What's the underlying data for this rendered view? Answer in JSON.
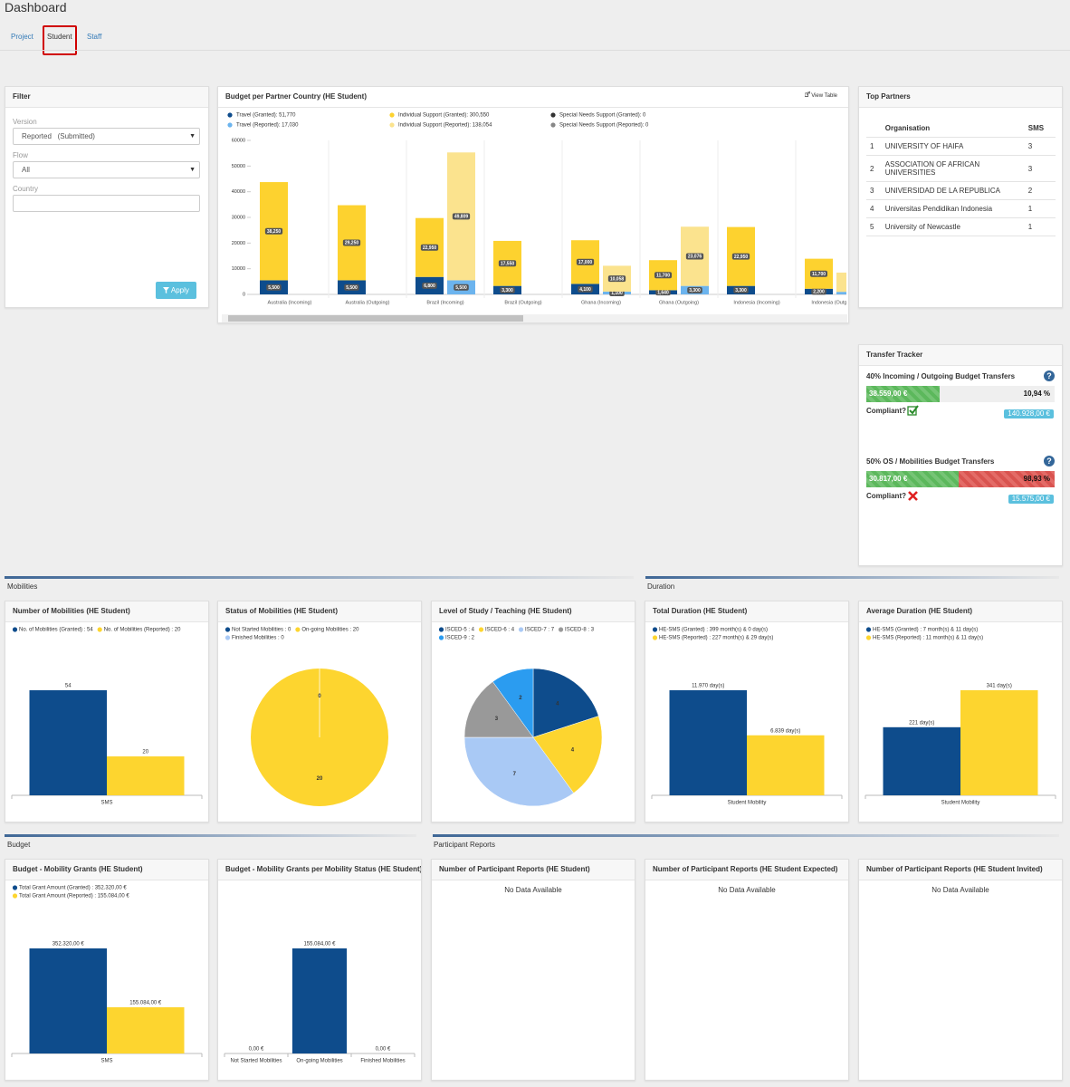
{
  "header": {
    "title": "Dashboard",
    "tabs": [
      "Project",
      "Student",
      "Staff"
    ]
  },
  "filter": {
    "title": "Filter",
    "version_label": "Version",
    "version_value": "Reported   (Submitted)",
    "flow_label": "Flow",
    "flow_value": "All",
    "country_label": "Country",
    "button": "Apply"
  },
  "budget_country": {
    "title": "Budget per Partner Country (HE Student)",
    "view_table": "View Table",
    "chart": {
      "type": "stacked-bar",
      "categories": [
        "Australia (Incoming)",
        "Australia (Outgoing)",
        "Brazil (Incoming)",
        "Brazil (Outgoing)",
        "Ghana (Incoming)",
        "Ghana (Outgoing)",
        "Indonesia (Incoming)",
        "Indonesia (Outgoing)"
      ],
      "series": [
        {
          "name": "Travel (Granted): 51,770",
          "color": "#0e4c8c",
          "stack": "granted",
          "values": [
            5500,
            5500,
            6800,
            3300,
            4100,
            1640,
            3300,
            2200
          ],
          "value_labels": [
            "5,500",
            "5,500",
            "6,800",
            "3,300",
            "4,100",
            "1,640",
            "3,300",
            "2,200"
          ]
        },
        {
          "name": "Travel (Reported): 17,030",
          "color": "#6cb4ee",
          "stack": "reported",
          "values": [
            null,
            null,
            5500,
            null,
            1100,
            3300,
            null,
            1000
          ],
          "value_labels": [
            null,
            null,
            "5,500",
            null,
            "1,100",
            "3,300",
            null,
            null
          ]
        },
        {
          "name": "Individual Support (Granted): 300,550",
          "color": "#fdd22f",
          "stack": "granted",
          "values": [
            38250,
            29250,
            22950,
            17550,
            17000,
            11700,
            22950,
            11700
          ],
          "value_labels": [
            "38,250",
            "29,250",
            "22,950",
            "17,550",
            "17,000",
            "11,700",
            "22,950",
            "11,700"
          ]
        },
        {
          "name": "Individual Support (Reported): 138,054",
          "color": "#fbe38e",
          "stack": "reported",
          "values": [
            null,
            null,
            49809,
            null,
            10058,
            23076,
            null,
            7500
          ],
          "value_labels": [
            null,
            null,
            "49,809",
            null,
            "10,058",
            "23,076",
            null,
            null
          ]
        },
        {
          "name": "Special Needs Support (Granted): 0",
          "color": "#333333",
          "stack": "granted",
          "values": [
            0,
            0,
            0,
            0,
            0,
            0,
            0,
            0
          ]
        },
        {
          "name": "Special Needs Support (Reported): 0",
          "color": "#888888",
          "stack": "reported",
          "values": [
            0,
            0,
            0,
            0,
            0,
            0,
            0,
            0
          ]
        }
      ],
      "ylim": [
        0,
        60000
      ],
      "yticks": [
        0,
        10000,
        20000,
        30000,
        40000,
        50000,
        60000
      ]
    }
  },
  "partners": {
    "title": "Top Partners",
    "columns": [
      "Organisation",
      "SMS"
    ],
    "rows": [
      [
        1,
        "UNIVERSITY OF HAIFA",
        3
      ],
      [
        2,
        "ASSOCIATION OF AFRICAN UNIVERSITIES",
        3
      ],
      [
        3,
        "UNIVERSIDAD DE LA REPUBLICA",
        2
      ],
      [
        4,
        "Universitas Pendidikan Indonesia",
        1
      ],
      [
        5,
        "University of Newcastle",
        1
      ]
    ]
  },
  "transfer": {
    "title": "Transfer Tracker",
    "items": [
      {
        "title": "40% Incoming / Outgoing Budget Transfers",
        "amount": "38.559,00 €",
        "percent": "10,94 %",
        "compliant_label": "Compliant?",
        "compliant": true,
        "limit": "140.928,00 €"
      },
      {
        "title": "50% OS / Mobilities Budget Transfers",
        "amount": "30.817,00 €",
        "percent": "98,93 %",
        "compliant_label": "Compliant?",
        "compliant": false,
        "limit": "15.575,00 €"
      }
    ]
  },
  "sections": [
    "Mobilities",
    "Duration",
    "Budget",
    "Participant Reports"
  ],
  "panels": {
    "mobilities_count": {
      "title": "Number of Mobilities (HE Student)",
      "chart": {
        "type": "bar",
        "categories": [
          "SMS"
        ],
        "series": [
          {
            "name": "No. of Mobilities (Granted) : 54",
            "color": "#0e4c8c",
            "values": [
              54
            ]
          },
          {
            "name": "No. of Mobilities (Reported) : 20",
            "color": "#fdd52f",
            "values": [
              20
            ]
          }
        ]
      }
    },
    "mobilities_status": {
      "title": "Status of Mobilities (HE Student)",
      "chart": {
        "type": "pie",
        "legend": [
          "Not Started Mobilities : 0",
          "On-going Mobilities : 20",
          "Finished Mobilities : 0"
        ],
        "values": [
          0,
          20,
          0
        ],
        "colors": [
          "#0e4c8c",
          "#fdd52f",
          "#a9c9f5"
        ]
      }
    },
    "level_of_study": {
      "title": "Level of Study / Teaching (HE Student)",
      "chart": {
        "type": "pie",
        "legend": [
          "ISCED-5 : 4",
          "ISCED-6 : 4",
          "ISCED-7 : 7",
          "ISCED-8 : 3",
          "ISCED-9 : 2"
        ],
        "values": [
          4,
          4,
          7,
          3,
          2
        ],
        "colors": [
          "#0e4c8c",
          "#fdd52f",
          "#a9c9f5",
          "#999999",
          "#2b9cf0"
        ]
      }
    },
    "total_duration": {
      "title": "Total Duration (HE Student)",
      "chart": {
        "type": "bar",
        "categories": [
          "Student Mobility"
        ],
        "series": [
          {
            "name": "HE-SMS (Granted) : 399 month(s) & 0 day(s)",
            "color": "#0e4c8c",
            "values": [
              11970
            ],
            "value_labels": [
              "11.970 day(s)"
            ]
          },
          {
            "name": "HE-SMS (Reported) : 227 month(s) & 29 day(s)",
            "color": "#fdd52f",
            "values": [
              6839
            ],
            "value_labels": [
              "6.839 day(s)"
            ]
          }
        ]
      }
    },
    "average_duration": {
      "title": "Average Duration (HE Student)",
      "chart": {
        "type": "bar",
        "categories": [
          "Student Mobility"
        ],
        "series": [
          {
            "name": "HE-SMS (Granted) : 7 month(s) & 11 day(s)",
            "color": "#0e4c8c",
            "values": [
              221
            ],
            "value_labels": [
              "221 day(s)"
            ]
          },
          {
            "name": "HE-SMS (Reported) : 11 month(s) & 11 day(s)",
            "color": "#fdd52f",
            "values": [
              341
            ],
            "value_labels": [
              "341 day(s)"
            ]
          }
        ]
      }
    },
    "grants": {
      "title": "Budget - Mobility Grants (HE Student)",
      "chart": {
        "type": "bar",
        "categories": [
          "SMS"
        ],
        "series": [
          {
            "name": "Total Grant Amount (Granted) : 352.320,00 €",
            "color": "#0e4c8c",
            "values": [
              352320
            ],
            "value_labels": [
              "352.320,00 €"
            ]
          },
          {
            "name": "Total Grant Amount (Reported) : 155.084,00 €",
            "color": "#fdd52f",
            "values": [
              155084
            ],
            "value_labels": [
              "155.084,00 €"
            ]
          }
        ]
      }
    },
    "grants_status": {
      "title": "Budget - Mobility Grants per Mobility Status (HE Student)",
      "chart": {
        "type": "bar",
        "categories": [
          "Not Started Mobilities",
          "On-going Mobilities",
          "Finished Mobilities"
        ],
        "series": [
          {
            "color": "#0e4c8c",
            "values": [
              0,
              155084,
              0
            ],
            "value_labels": [
              "0,00 €",
              "155.084,00 €",
              "0,00 €"
            ]
          }
        ]
      }
    },
    "reports_student": {
      "title": "Number of Participant Reports (HE Student)",
      "message": "No Data Available"
    },
    "reports_expected": {
      "title": "Number of Participant Reports (HE Student Expected)",
      "message": "No Data Available"
    },
    "reports_invited": {
      "title": "Number of Participant Reports (HE Student Invited)",
      "message": "No Data Available"
    }
  }
}
